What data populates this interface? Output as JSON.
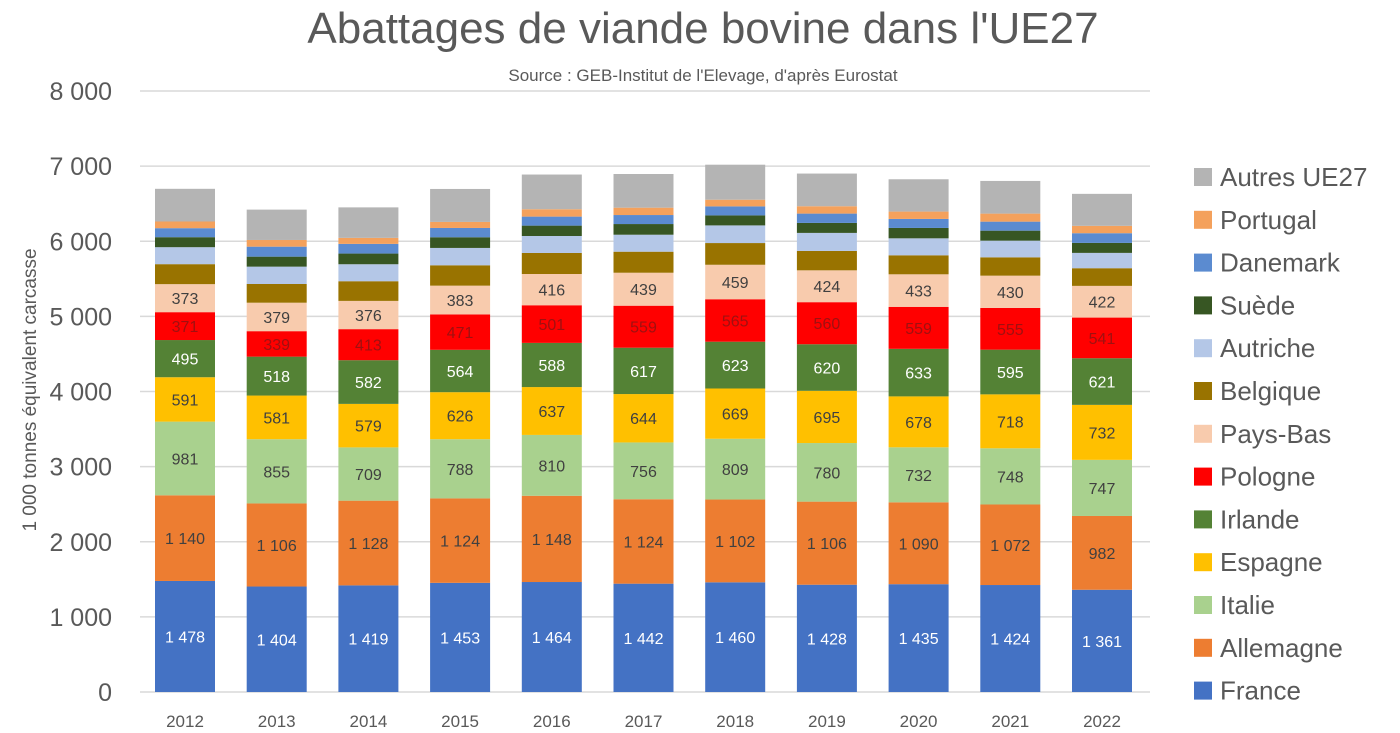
{
  "chart_data": {
    "type": "stacked-bar",
    "title": "Abattages de viande bovine dans l'UE27",
    "subtitle": "Source : GEB-Institut de l'Elevage, d'après Eurostat",
    "xlabel": "",
    "ylabel": "1 000 tonnes équivalent carcasse",
    "ylim": [
      0,
      8000
    ],
    "yticks": [
      0,
      1000,
      2000,
      3000,
      4000,
      5000,
      6000,
      7000,
      8000
    ],
    "ytick_labels": [
      "0",
      "1 000",
      "2 000",
      "3 000",
      "4 000",
      "5 000",
      "6 000",
      "7 000",
      "8 000"
    ],
    "grid": true,
    "legend_position": "right",
    "categories": [
      "2012",
      "2013",
      "2014",
      "2015",
      "2016",
      "2017",
      "2018",
      "2019",
      "2020",
      "2021",
      "2022"
    ],
    "series": [
      {
        "name": "France",
        "color": "#4472C4",
        "label_color": "#ffffff",
        "labeled": true,
        "values": [
          1478,
          1404,
          1419,
          1453,
          1464,
          1442,
          1460,
          1428,
          1435,
          1424,
          1361
        ]
      },
      {
        "name": "Allemagne",
        "color": "#ED7D31",
        "label_color": "#404040",
        "labeled": true,
        "values": [
          1140,
          1106,
          1128,
          1124,
          1148,
          1124,
          1102,
          1106,
          1090,
          1072,
          982
        ]
      },
      {
        "name": "Italie",
        "color": "#A9D18E",
        "label_color": "#404040",
        "labeled": true,
        "values": [
          981,
          855,
          709,
          788,
          810,
          756,
          809,
          780,
          732,
          748,
          747
        ]
      },
      {
        "name": "Espagne",
        "color": "#FFC000",
        "label_color": "#404040",
        "labeled": true,
        "values": [
          591,
          581,
          579,
          626,
          637,
          644,
          669,
          695,
          678,
          718,
          732
        ]
      },
      {
        "name": "Irlande",
        "color": "#548235",
        "label_color": "#ffffff",
        "labeled": true,
        "values": [
          495,
          518,
          582,
          564,
          588,
          617,
          623,
          620,
          633,
          595,
          621
        ]
      },
      {
        "name": "Pologne",
        "color": "#FF0000",
        "label_color": "#A01010",
        "labeled": true,
        "values": [
          371,
          339,
          413,
          471,
          501,
          559,
          565,
          560,
          559,
          555,
          541
        ]
      },
      {
        "name": "Pays-Bas",
        "color": "#F8CBAD",
        "label_color": "#404040",
        "labeled": true,
        "values": [
          373,
          379,
          376,
          383,
          416,
          439,
          459,
          424,
          433,
          430,
          422
        ]
      },
      {
        "name": "Belgique",
        "color": "#997300",
        "labeled": false,
        "values": [
          266,
          249,
          262,
          271,
          280,
          280,
          289,
          258,
          253,
          244,
          235
        ]
      },
      {
        "name": "Autriche",
        "color": "#B4C7E7",
        "labeled": false,
        "values": [
          226,
          231,
          226,
          231,
          226,
          226,
          235,
          240,
          226,
          222,
          204
        ]
      },
      {
        "name": "Suède",
        "color": "#375623",
        "labeled": false,
        "values": [
          133,
          133,
          142,
          142,
          138,
          142,
          133,
          133,
          138,
          133,
          133
        ]
      },
      {
        "name": "Danemark",
        "color": "#5B8BD0",
        "labeled": false,
        "values": [
          120,
          133,
          129,
          124,
          120,
          120,
          120,
          124,
          120,
          120,
          129
        ]
      },
      {
        "name": "Portugal",
        "color": "#F4A15C",
        "labeled": false,
        "values": [
          89,
          89,
          80,
          80,
          98,
          98,
          89,
          98,
          98,
          107,
          98
        ]
      },
      {
        "name": "Autres UE27",
        "color": "#B4B4B4",
        "labeled": false,
        "values": [
          435,
          404,
          406,
          439,
          462,
          448,
          466,
          435,
          430,
          435,
          426
        ]
      }
    ]
  }
}
